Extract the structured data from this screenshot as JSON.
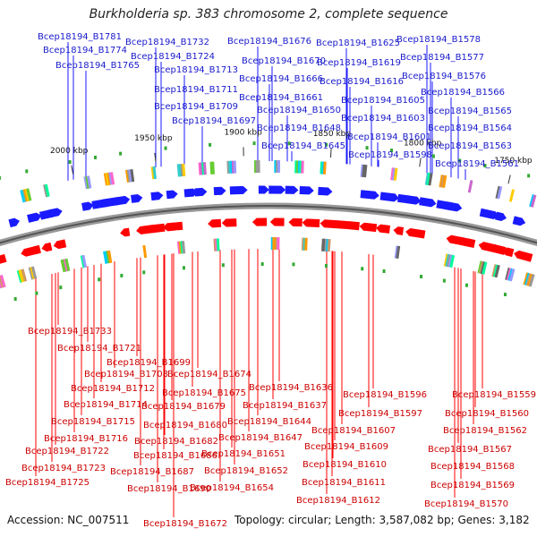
{
  "title": "Burkholderia sp. 383 chromosome 2, complete sequence",
  "footer": {
    "accession": "Accession: NC_007511",
    "topology": "Topology: circular; Length: 3,587,082 bp; Genes: 3,182"
  },
  "colors": {
    "forward": "#1a1aff",
    "reverse": "#ff0000",
    "backbone": "#777777",
    "label_forward": "#1a1acc",
    "label_reverse": "#cc0000"
  },
  "ticks": [
    "2000 kbp",
    "1950 kbp",
    "1900 kbp",
    "1850 kbp",
    "1800 kbp",
    "1750 kbp"
  ],
  "forward_genes": [
    "Bcep18194_B1781",
    "Bcep18194_B1774",
    "Bcep18194_B1765",
    "Bcep18194_B1732",
    "Bcep18194_B1724",
    "Bcep18194_B1713",
    "Bcep18194_B1711",
    "Bcep18194_B1709",
    "Bcep18194_B1697",
    "Bcep18194_B1676",
    "Bcep18194_B1670",
    "Bcep18194_B1666",
    "Bcep18194_B1661",
    "Bcep18194_B1650",
    "Bcep18194_B1648",
    "Bcep18194_B1645",
    "Bcep18194_B1625",
    "Bcep18194_B1619",
    "Bcep18194_B1616",
    "Bcep18194_B1605",
    "Bcep18194_B1603",
    "Bcep18194_B1601",
    "Bcep18194_B1598",
    "Bcep18194_B1578",
    "Bcep18194_B1577",
    "Bcep18194_B1576",
    "Bcep18194_B1566",
    "Bcep18194_B1565",
    "Bcep18194_B1564",
    "Bcep18194_B1563",
    "Bcep18194_B1561"
  ],
  "reverse_genes": [
    "Bcep18194_B1733",
    "Bcep18194_B1721",
    "Bcep18194_B1699",
    "Bcep18194_B1708",
    "Bcep18194_B1674",
    "Bcep18194_B1712",
    "Bcep18194_B1675",
    "Bcep18194_B1714",
    "Bcep18194_B1679",
    "Bcep18194_B1715",
    "Bcep18194_B1680",
    "Bcep18194_B1716",
    "Bcep18194_B1682",
    "Bcep18194_B1722",
    "Bcep18194_B1686",
    "Bcep18194_B1723",
    "Bcep18194_B1687",
    "Bcep18194_B1725",
    "Bcep18194_B1690",
    "Bcep18194_B1672",
    "Bcep18194_B1636",
    "Bcep18194_B1637",
    "Bcep18194_B1644",
    "Bcep18194_B1647",
    "Bcep18194_B1651",
    "Bcep18194_B1652",
    "Bcep18194_B1654",
    "Bcep18194_B1596",
    "Bcep18194_B1597",
    "Bcep18194_B1607",
    "Bcep18194_B1609",
    "Bcep18194_B1610",
    "Bcep18194_B1611",
    "Bcep18194_B1612",
    "Bcep18194_B1559",
    "Bcep18194_B1560",
    "Bcep18194_B1562",
    "Bcep18194_B1567",
    "Bcep18194_B1568",
    "Bcep18194_B1569",
    "Bcep18194_B1570"
  ]
}
